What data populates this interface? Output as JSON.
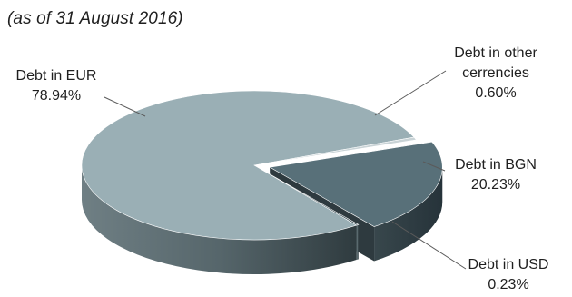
{
  "subtitle": "(as of 31 August 2016)",
  "chart_data": {
    "type": "pie",
    "subtitle": "(as of 31 August 2016)",
    "title": "",
    "exploded_slice": "Debt in BGN",
    "slices": [
      {
        "name": "Debt in EUR",
        "value": 78.94,
        "label_text": "78.94%",
        "label_lines": [
          "Debt in EUR"
        ],
        "color": "#9aafb5"
      },
      {
        "name": "Debt in other cerrencies",
        "value": 0.6,
        "label_text": "0.60%",
        "label_lines": [
          "Debt in other",
          "cerrencies"
        ],
        "color": "#c9d3d6"
      },
      {
        "name": "Debt in BGN",
        "value": 20.23,
        "label_text": "20.23%",
        "label_lines": [
          "Debt in BGN"
        ],
        "color": "#587079"
      },
      {
        "name": "Debt in USD",
        "value": 0.23,
        "label_text": "0.23%",
        "label_lines": [
          "Debt in USD"
        ],
        "color": "#46585f"
      }
    ]
  }
}
